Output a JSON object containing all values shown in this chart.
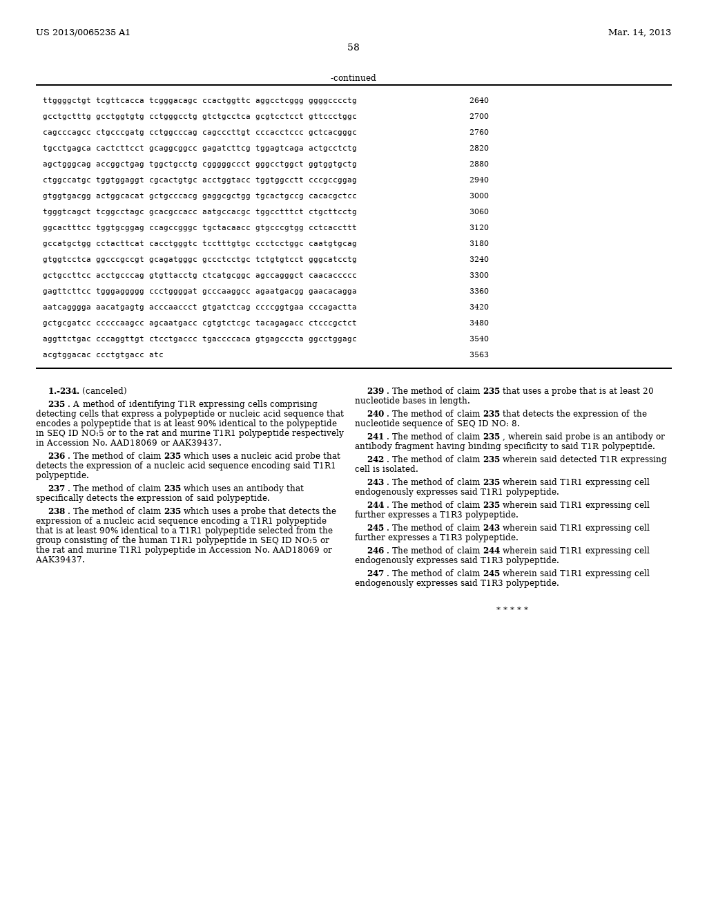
{
  "header_left": "US 2013/0065235 A1",
  "header_right": "Mar. 14, 2013",
  "page_number": "58",
  "continued_label": "-continued",
  "sequence_lines": [
    [
      "ttggggctgt tcgttcacca tcgggacagc ccactggttc aggcctcggg ggggcccctg",
      "2640"
    ],
    [
      "gcctgctttg gcctggtgtg cctgggcctg gtctgcctca gcgtcctcct gttccctggc",
      "2700"
    ],
    [
      "cagcccagcc ctgcccgatg cctggcccag cagcccttgt cccacctccc gctcacgggc",
      "2760"
    ],
    [
      "tgcctgagca cactcttcct gcaggcggcc gagatcttcg tggagtcaga actgcctctg",
      "2820"
    ],
    [
      "agctgggcag accggctgag tggctgcctg cgggggccct gggcctggct ggtggtgctg",
      "2880"
    ],
    [
      "ctggccatgc tggtggaggt cgcactgtgc acctggtacc tggtggcctt cccgccggag",
      "2940"
    ],
    [
      "gtggtgacgg actggcacat gctgcccacg gaggcgctgg tgcactgccg cacacgctcc",
      "3000"
    ],
    [
      "tgggtcagct tcggcctagc gcacgccacc aatgccacgc tggcctttct ctgcttcctg",
      "3060"
    ],
    [
      "ggcactttcc tggtgcggag ccagccgggc tgctacaacc gtgcccgtgg cctcaccttt",
      "3120"
    ],
    [
      "gccatgctgg cctacttcat cacctgggtc tcctttgtgc ccctcctggc caatgtgcag",
      "3180"
    ],
    [
      "gtggtcctca ggcccgccgt gcagatgggc gccctcctgc tctgtgtcct gggcatcctg",
      "3240"
    ],
    [
      "gctgccttcc acctgcccag gtgttacctg ctcatgcggc agccagggct caacaccccc",
      "3300"
    ],
    [
      "gagttcttcc tgggaggggg ccctggggat gcccaaggcc agaatgacgg gaacacagga",
      "3360"
    ],
    [
      "aatcagggga aacatgagtg acccaaccct gtgatctcag ccccggtgaa cccagactta",
      "3420"
    ],
    [
      "gctgcgatcc cccccaagcc agcaatgacc cgtgtctcgc tacagagacc ctcccgctct",
      "3480"
    ],
    [
      "aggttctgac cccaggttgt ctcctgaccc tgaccccaca gtgagcccta ggcctggagc",
      "3540"
    ],
    [
      "acgtggacac ccctgtgacc atc",
      "3563"
    ]
  ],
  "bg_color": "#ffffff",
  "text_color": "#000000",
  "seq_font_size": 8.5,
  "body_font_size": 8.8,
  "header_font_size": 9.5,
  "page_num_font_size": 11
}
